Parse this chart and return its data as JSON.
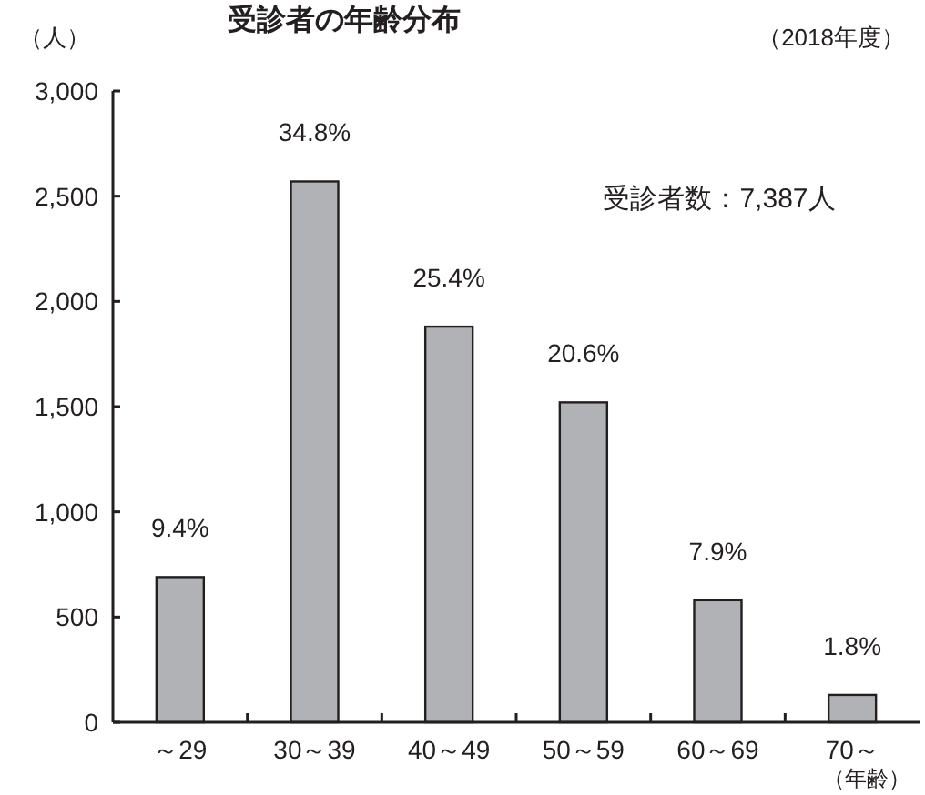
{
  "chart_data": {
    "type": "bar",
    "title": "受診者の年齢分布",
    "ylabel": "（人）",
    "xlabel": "（年齢）",
    "annotations": [
      "（2018年度）",
      "受診者数：7,387人",
      {
        "text": "9.4%",
        "x": "～29",
        "y": 690
      },
      {
        "text": "34.8%",
        "x": "30～39",
        "y": 2570
      },
      {
        "text": "25.4%",
        "x": "40～49",
        "y": 1880
      },
      {
        "text": "20.6%",
        "x": "50～59",
        "y": 1520
      },
      {
        "text": "7.9%",
        "x": "60～69",
        "y": 580
      },
      {
        "text": "1.8%",
        "x": "70～",
        "y": 130
      }
    ],
    "categories": [
      "～29",
      "30～39",
      "40～49",
      "50～59",
      "60～69",
      "70～"
    ],
    "values": [
      690,
      2570,
      1880,
      1520,
      580,
      130
    ],
    "color": "#b1b2b6",
    "ylim": [
      0,
      3000
    ],
    "yticks": [
      {
        "value": 0,
        "label": "0"
      },
      {
        "value": 500,
        "label": "500"
      },
      {
        "value": 1000,
        "label": "1,000"
      },
      {
        "value": 1500,
        "label": "1,500"
      },
      {
        "value": 2000,
        "label": "2,000"
      },
      {
        "value": 2500,
        "label": "2,500"
      },
      {
        "value": 3000,
        "label": "3,000"
      }
    ]
  }
}
